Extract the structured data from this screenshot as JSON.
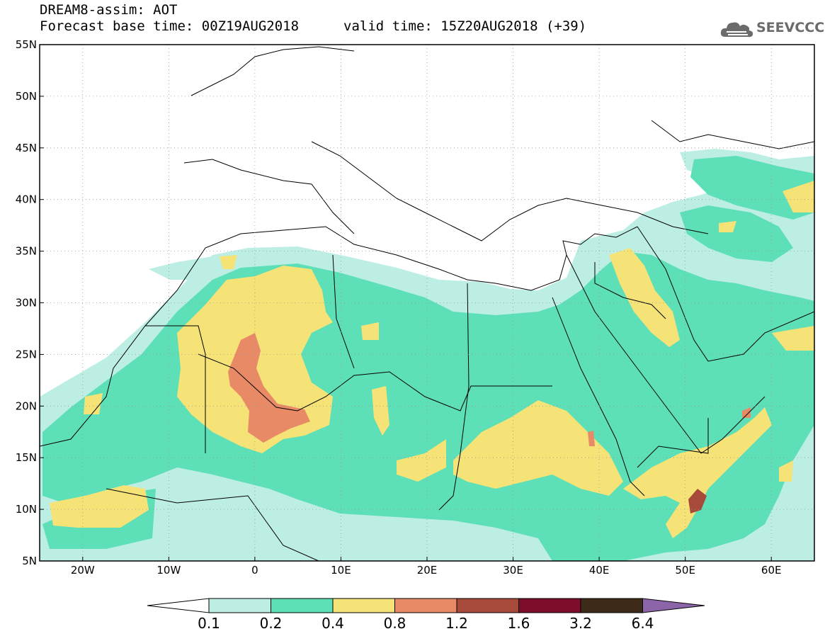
{
  "header": {
    "line1": "DREAM8-assim: AOT",
    "line2": "Forecast base time: 00Z19AUG2018",
    "valid": "valid time: 15Z20AUG2018 (+39)",
    "logo_text": "SEEVCCC",
    "logo_icon": "cloud-logo-icon"
  },
  "map": {
    "lon_range": [
      -25,
      65
    ],
    "lat_range": [
      5,
      55
    ],
    "lat_ticks": [
      "5N",
      "10N",
      "15N",
      "20N",
      "25N",
      "30N",
      "35N",
      "40N",
      "45N",
      "50N",
      "55N"
    ],
    "lon_ticks": [
      "20W",
      "10W",
      "0",
      "10E",
      "20E",
      "30E",
      "40E",
      "50E",
      "60E"
    ]
  },
  "legend": {
    "labels": [
      "0.1",
      "0.2",
      "0.4",
      "0.8",
      "1.2",
      "1.6",
      "3.2",
      "6.4"
    ],
    "colors": [
      "#ffffff",
      "#bdeee4",
      "#5ddfb8",
      "#f5e377",
      "#e98a66",
      "#a74a3a",
      "#7c0e2b",
      "#3d2a18",
      "#8c65a8"
    ]
  }
}
